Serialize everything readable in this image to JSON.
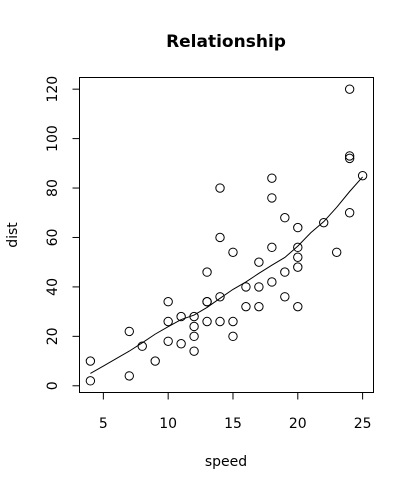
{
  "chart_data": {
    "type": "scatter",
    "title": "Relationship",
    "xlabel": "speed",
    "ylabel": "dist",
    "xlim": [
      3.16,
      25.84
    ],
    "ylim": [
      -2.72,
      124.72
    ],
    "xticks": [
      5,
      10,
      15,
      20,
      25
    ],
    "yticks": [
      0,
      20,
      40,
      60,
      80,
      100,
      120
    ],
    "grid": false,
    "legend": "none",
    "point_shape": "open-circle",
    "points": [
      {
        "x": 4,
        "y": 2
      },
      {
        "x": 4,
        "y": 10
      },
      {
        "x": 7,
        "y": 4
      },
      {
        "x": 7,
        "y": 22
      },
      {
        "x": 8,
        "y": 16
      },
      {
        "x": 9,
        "y": 10
      },
      {
        "x": 10,
        "y": 18
      },
      {
        "x": 10,
        "y": 26
      },
      {
        "x": 10,
        "y": 34
      },
      {
        "x": 11,
        "y": 17
      },
      {
        "x": 11,
        "y": 28
      },
      {
        "x": 12,
        "y": 14
      },
      {
        "x": 12,
        "y": 20
      },
      {
        "x": 12,
        "y": 24
      },
      {
        "x": 12,
        "y": 28
      },
      {
        "x": 13,
        "y": 26
      },
      {
        "x": 13,
        "y": 34
      },
      {
        "x": 13,
        "y": 34
      },
      {
        "x": 13,
        "y": 46
      },
      {
        "x": 14,
        "y": 26
      },
      {
        "x": 14,
        "y": 36
      },
      {
        "x": 14,
        "y": 60
      },
      {
        "x": 14,
        "y": 80
      },
      {
        "x": 15,
        "y": 20
      },
      {
        "x": 15,
        "y": 26
      },
      {
        "x": 15,
        "y": 54
      },
      {
        "x": 16,
        "y": 32
      },
      {
        "x": 16,
        "y": 40
      },
      {
        "x": 17,
        "y": 32
      },
      {
        "x": 17,
        "y": 40
      },
      {
        "x": 17,
        "y": 50
      },
      {
        "x": 18,
        "y": 42
      },
      {
        "x": 18,
        "y": 56
      },
      {
        "x": 18,
        "y": 76
      },
      {
        "x": 18,
        "y": 84
      },
      {
        "x": 19,
        "y": 36
      },
      {
        "x": 19,
        "y": 46
      },
      {
        "x": 19,
        "y": 68
      },
      {
        "x": 20,
        "y": 32
      },
      {
        "x": 20,
        "y": 48
      },
      {
        "x": 20,
        "y": 52
      },
      {
        "x": 20,
        "y": 56
      },
      {
        "x": 20,
        "y": 64
      },
      {
        "x": 22,
        "y": 66
      },
      {
        "x": 23,
        "y": 54
      },
      {
        "x": 24,
        "y": 70
      },
      {
        "x": 24,
        "y": 92
      },
      {
        "x": 24,
        "y": 93
      },
      {
        "x": 24,
        "y": 120
      },
      {
        "x": 25,
        "y": 85
      }
    ],
    "smooth_line": [
      {
        "x": 4,
        "y": 4.97
      },
      {
        "x": 5,
        "y": 7.98
      },
      {
        "x": 6,
        "y": 11.0
      },
      {
        "x": 7,
        "y": 14.02
      },
      {
        "x": 8,
        "y": 17.4
      },
      {
        "x": 9,
        "y": 20.9
      },
      {
        "x": 10,
        "y": 23.9
      },
      {
        "x": 11,
        "y": 26.8
      },
      {
        "x": 12,
        "y": 28.6
      },
      {
        "x": 13,
        "y": 31.7
      },
      {
        "x": 14,
        "y": 35.4
      },
      {
        "x": 15,
        "y": 39.0
      },
      {
        "x": 16,
        "y": 42.0
      },
      {
        "x": 17,
        "y": 45.5
      },
      {
        "x": 18,
        "y": 48.8
      },
      {
        "x": 19,
        "y": 51.9
      },
      {
        "x": 20,
        "y": 56.5
      },
      {
        "x": 21,
        "y": 61.9
      },
      {
        "x": 22,
        "y": 66.4
      },
      {
        "x": 23,
        "y": 72.2
      },
      {
        "x": 24,
        "y": 78.6
      },
      {
        "x": 25,
        "y": 84.5
      }
    ]
  }
}
